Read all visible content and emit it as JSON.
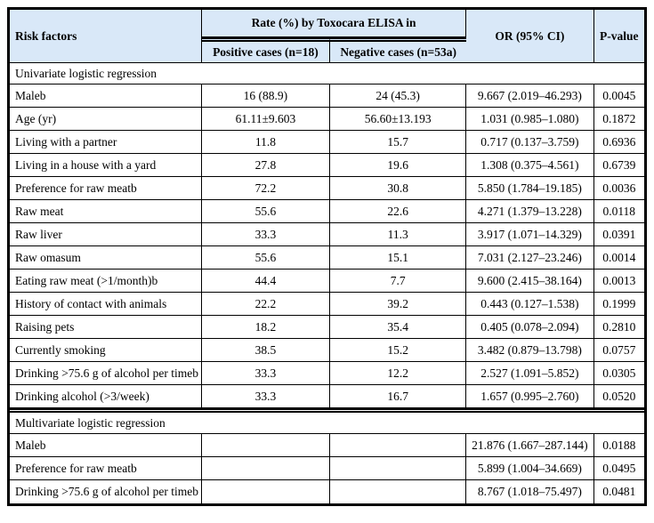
{
  "colors": {
    "header_bg": "#d9e8f8",
    "border": "#000000",
    "text": "#000000",
    "body_bg": "#ffffff"
  },
  "header": {
    "risk_factors": "Risk factors",
    "rate_group": "Rate (%) by Toxocara ELISA in",
    "positive": "Positive cases (n=18)",
    "negative": "Negative cases (n=53a)",
    "or_ci": "OR (95% CI)",
    "p_value": "P-value"
  },
  "sections": [
    {
      "title": "Univariate logistic regression",
      "rows": [
        {
          "label": "Maleb",
          "positive": "16 (88.9)",
          "negative": "24 (45.3)",
          "or": "9.667 (2.019–46.293)",
          "p": "0.0045"
        },
        {
          "label": "Age (yr)",
          "positive": "61.11±9.603",
          "negative": "56.60±13.193",
          "or": "1.031 (0.985–1.080)",
          "p": "0.1872"
        },
        {
          "label": "Living with a partner",
          "positive": "11.8",
          "negative": "15.7",
          "or": "0.717 (0.137–3.759)",
          "p": "0.6936"
        },
        {
          "label": "Living in a house with a yard",
          "positive": "27.8",
          "negative": "19.6",
          "or": "1.308 (0.375–4.561)",
          "p": "0.6739"
        },
        {
          "label": "Preference for raw meatb",
          "positive": "72.2",
          "negative": "30.8",
          "or": "5.850 (1.784–19.185)",
          "p": "0.0036"
        },
        {
          "label": "Raw meat",
          "positive": "55.6",
          "negative": "22.6",
          "or": "4.271 (1.379–13.228)",
          "p": "0.0118"
        },
        {
          "label": "Raw liver",
          "positive": "33.3",
          "negative": "11.3",
          "or": "3.917 (1.071–14.329)",
          "p": "0.0391"
        },
        {
          "label": "Raw omasum",
          "positive": "55.6",
          "negative": "15.1",
          "or": "7.031 (2.127–23.246)",
          "p": "0.0014"
        },
        {
          "label": "Eating raw meat (>1/month)b",
          "positive": "44.4",
          "negative": "7.7",
          "or": "9.600 (2.415–38.164)",
          "p": "0.0013"
        },
        {
          "label": "History of contact with animals",
          "positive": "22.2",
          "negative": "39.2",
          "or": "0.443 (0.127–1.538)",
          "p": "0.1999"
        },
        {
          "label": "Raising pets",
          "positive": "18.2",
          "negative": "35.4",
          "or": "0.405 (0.078–2.094)",
          "p": "0.2810"
        },
        {
          "label": "Currently smoking",
          "positive": "38.5",
          "negative": "15.2",
          "or": "3.482 (0.879–13.798)",
          "p": "0.0757"
        },
        {
          "label": "Drinking >75.6 g of alcohol per timeb",
          "positive": "33.3",
          "negative": "12.2",
          "or": "2.527 (1.091–5.852)",
          "p": "0.0305"
        },
        {
          "label": "Drinking alcohol (>3/week)",
          "positive": "33.3",
          "negative": "16.7",
          "or": "1.657 (0.995–2.760)",
          "p": "0.0520"
        }
      ]
    },
    {
      "title": "Multivariate logistic regression",
      "rows": [
        {
          "label": "Maleb",
          "positive": "",
          "negative": "",
          "or": "21.876 (1.667–287.144)",
          "p": "0.0188"
        },
        {
          "label": "Preference for raw meatb",
          "positive": "",
          "negative": "",
          "or": "5.899 (1.004–34.669)",
          "p": "0.0495"
        },
        {
          "label": "Drinking >75.6 g of alcohol per timeb",
          "positive": "",
          "negative": "",
          "or": "8.767 (1.018–75.497)",
          "p": "0.0481"
        }
      ]
    }
  ]
}
